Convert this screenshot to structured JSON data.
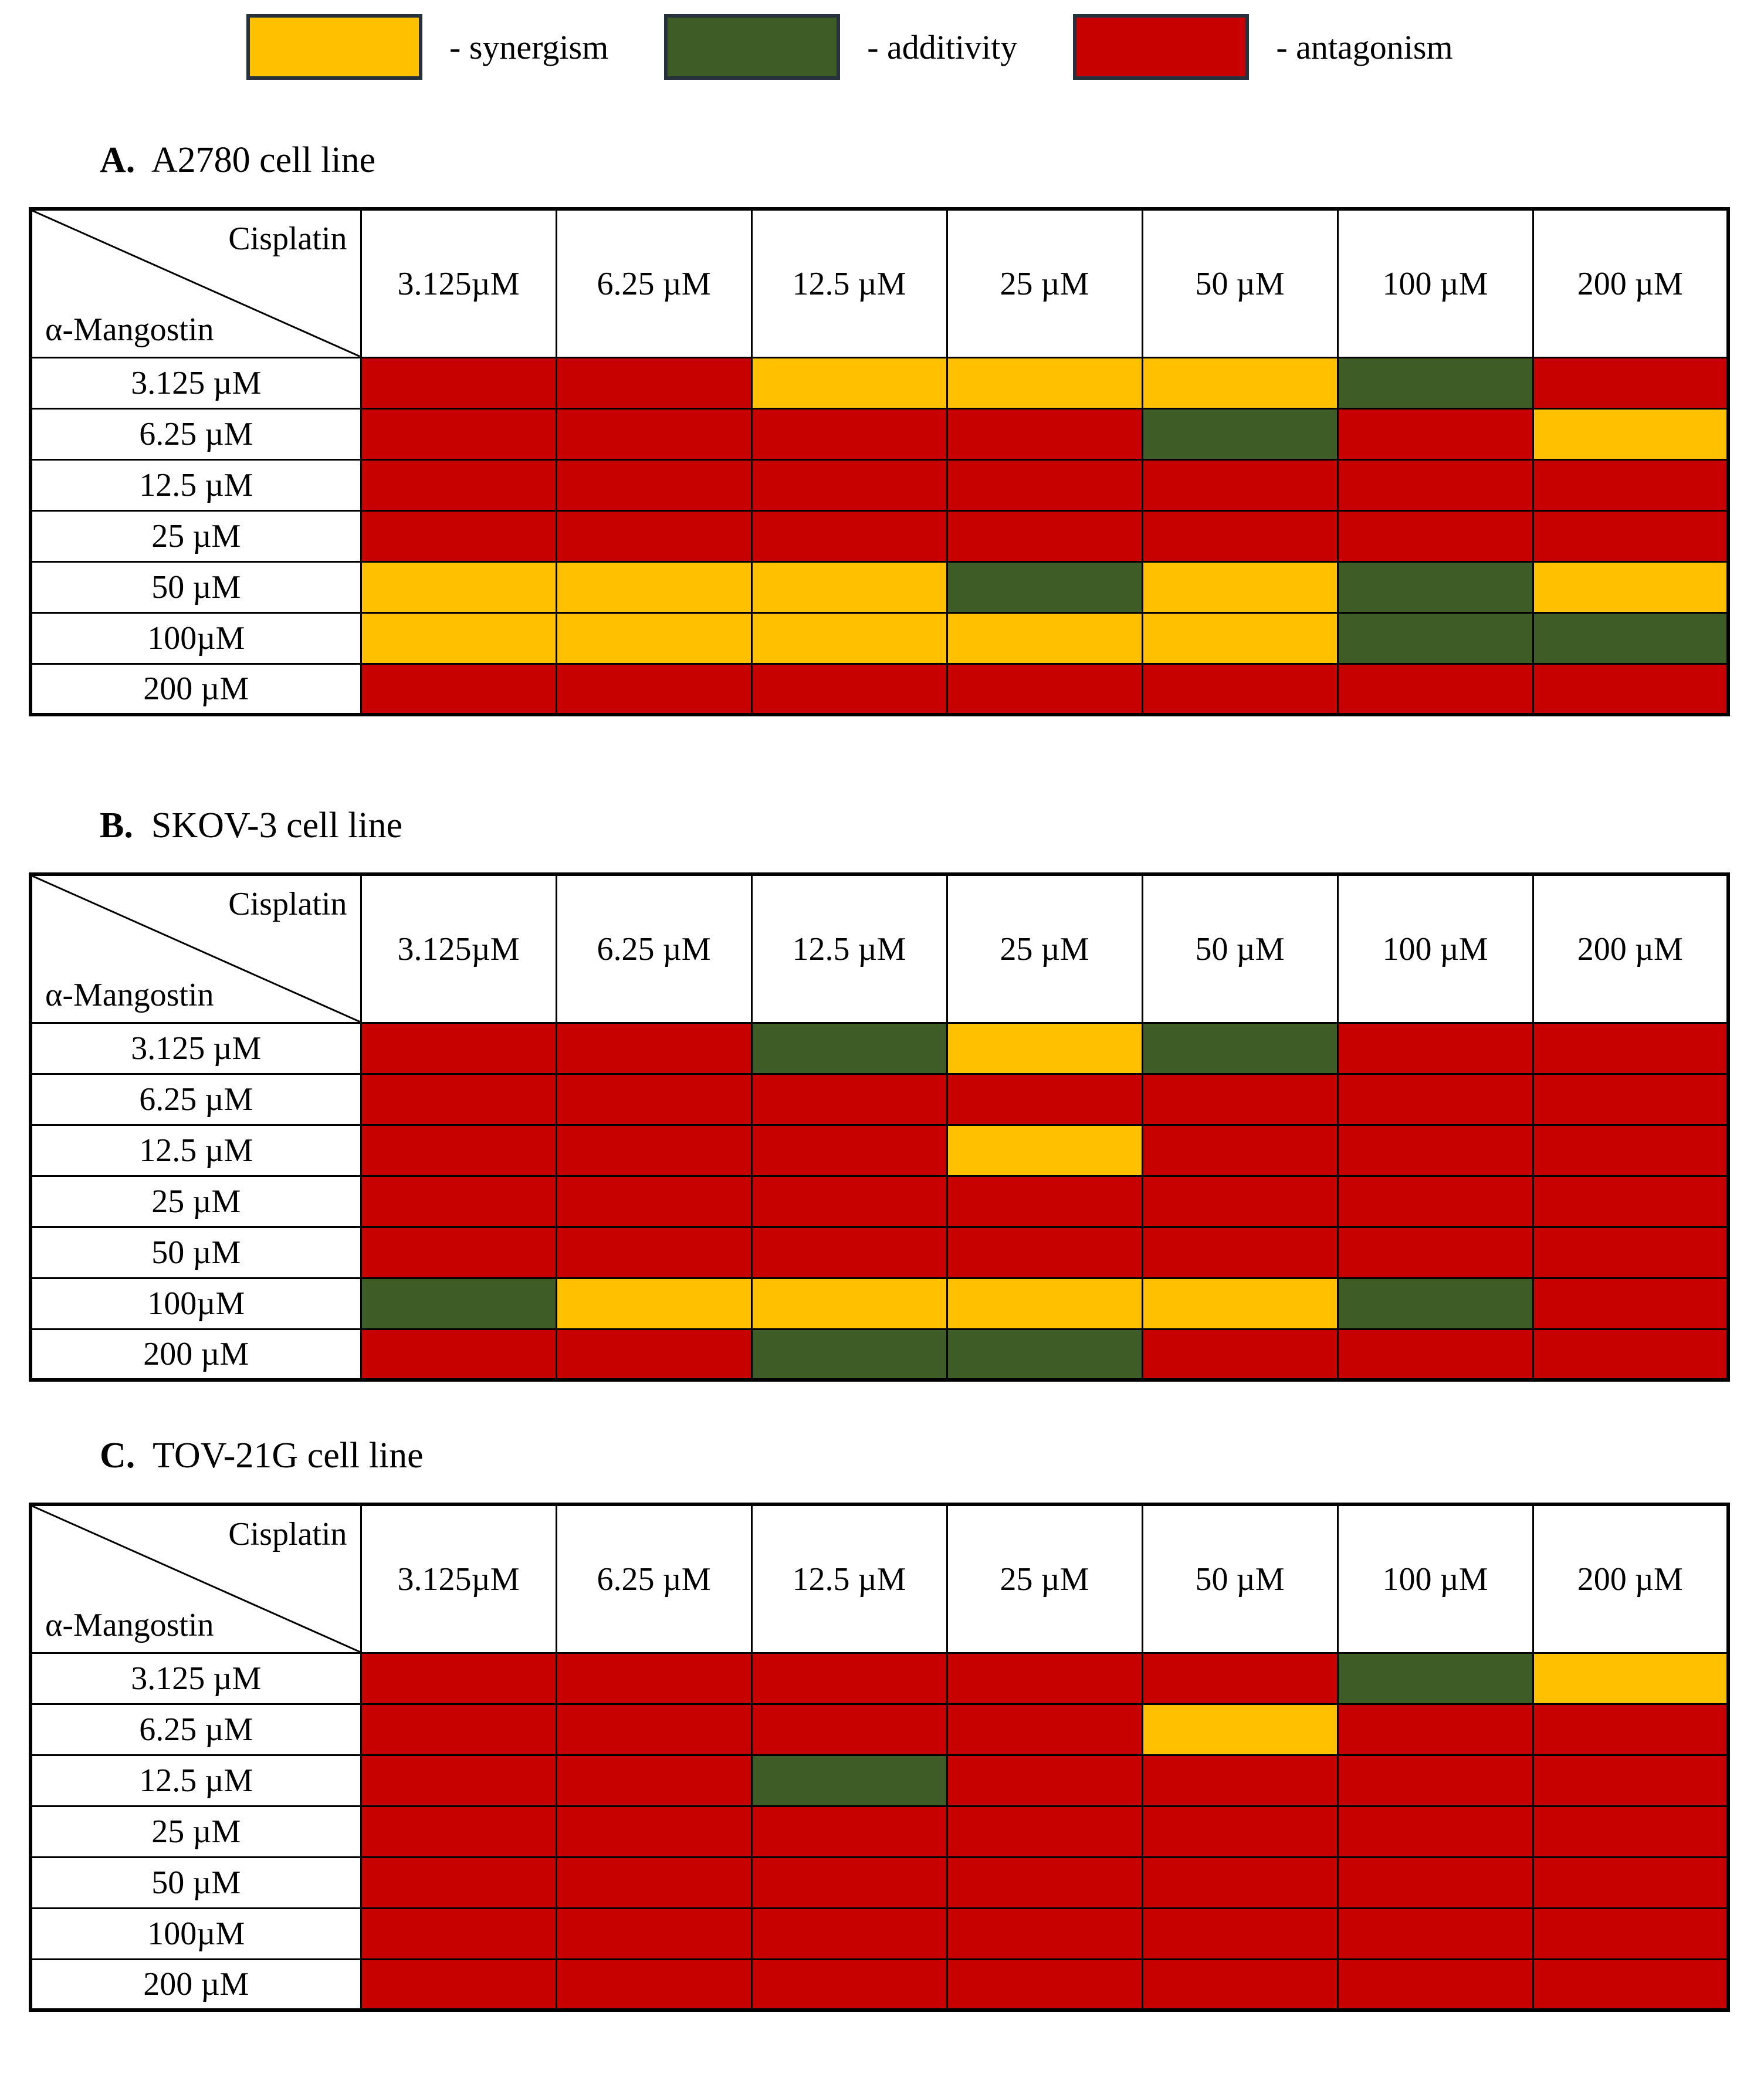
{
  "legend": {
    "items": [
      {
        "value": "synergism",
        "label": "- synergism",
        "color": "#FFC000"
      },
      {
        "value": "additivity",
        "label": "- additivity",
        "color": "#3E5D26"
      },
      {
        "value": "antagonism",
        "label": "- antagonism",
        "color": "#C70000"
      }
    ]
  },
  "axis": {
    "col_drug": "Cisplatin",
    "row_drug": "α-Mangostin",
    "col_labels": [
      "3.125µM",
      "6.25 µM",
      "12.5 µM",
      "25 µM",
      "50 µM",
      "100 µM",
      "200 µM"
    ],
    "row_labels": [
      "3.125 µM",
      "6.25 µM",
      "12.5 µM",
      "25 µM",
      "50 µM",
      "100µM",
      "200 µM"
    ]
  },
  "tables": [
    {
      "prefix": "A.",
      "title": "A2780 cell line",
      "grid": [
        [
          "antagonism",
          "antagonism",
          "synergism",
          "synergism",
          "synergism",
          "additivity",
          "antagonism"
        ],
        [
          "antagonism",
          "antagonism",
          "antagonism",
          "antagonism",
          "additivity",
          "antagonism",
          "synergism"
        ],
        [
          "antagonism",
          "antagonism",
          "antagonism",
          "antagonism",
          "antagonism",
          "antagonism",
          "antagonism"
        ],
        [
          "antagonism",
          "antagonism",
          "antagonism",
          "antagonism",
          "antagonism",
          "antagonism",
          "antagonism"
        ],
        [
          "synergism",
          "synergism",
          "synergism",
          "additivity",
          "synergism",
          "additivity",
          "synergism"
        ],
        [
          "synergism",
          "synergism",
          "synergism",
          "synergism",
          "synergism",
          "additivity",
          "additivity"
        ],
        [
          "antagonism",
          "antagonism",
          "antagonism",
          "antagonism",
          "antagonism",
          "antagonism",
          "antagonism"
        ]
      ]
    },
    {
      "prefix": "B.",
      "title": "SKOV-3 cell line",
      "grid": [
        [
          "antagonism",
          "antagonism",
          "additivity",
          "synergism",
          "additivity",
          "antagonism",
          "antagonism"
        ],
        [
          "antagonism",
          "antagonism",
          "antagonism",
          "antagonism",
          "antagonism",
          "antagonism",
          "antagonism"
        ],
        [
          "antagonism",
          "antagonism",
          "antagonism",
          "synergism",
          "antagonism",
          "antagonism",
          "antagonism"
        ],
        [
          "antagonism",
          "antagonism",
          "antagonism",
          "antagonism",
          "antagonism",
          "antagonism",
          "antagonism"
        ],
        [
          "antagonism",
          "antagonism",
          "antagonism",
          "antagonism",
          "antagonism",
          "antagonism",
          "antagonism"
        ],
        [
          "additivity",
          "synergism",
          "synergism",
          "synergism",
          "synergism",
          "additivity",
          "antagonism"
        ],
        [
          "antagonism",
          "antagonism",
          "additivity",
          "additivity",
          "antagonism",
          "antagonism",
          "antagonism"
        ]
      ]
    },
    {
      "prefix": "C.",
      "title": "TOV-21G cell line",
      "grid": [
        [
          "antagonism",
          "antagonism",
          "antagonism",
          "antagonism",
          "antagonism",
          "additivity",
          "synergism"
        ],
        [
          "antagonism",
          "antagonism",
          "antagonism",
          "antagonism",
          "synergism",
          "antagonism",
          "antagonism"
        ],
        [
          "antagonism",
          "antagonism",
          "additivity",
          "antagonism",
          "antagonism",
          "antagonism",
          "antagonism"
        ],
        [
          "antagonism",
          "antagonism",
          "antagonism",
          "antagonism",
          "antagonism",
          "antagonism",
          "antagonism"
        ],
        [
          "antagonism",
          "antagonism",
          "antagonism",
          "antagonism",
          "antagonism",
          "antagonism",
          "antagonism"
        ],
        [
          "antagonism",
          "antagonism",
          "antagonism",
          "antagonism",
          "antagonism",
          "antagonism",
          "antagonism"
        ],
        [
          "antagonism",
          "antagonism",
          "antagonism",
          "antagonism",
          "antagonism",
          "antagonism",
          "antagonism"
        ]
      ]
    }
  ],
  "chart_data": [
    {
      "type": "heatmap",
      "title": "A. A2780 cell line",
      "xlabel": "Cisplatin",
      "ylabel": "α-Mangostin",
      "x_categories": [
        "3.125µM",
        "6.25 µM",
        "12.5 µM",
        "25 µM",
        "50 µM",
        "100 µM",
        "200 µM"
      ],
      "y_categories": [
        "3.125 µM",
        "6.25 µM",
        "12.5 µM",
        "25 µM",
        "50 µM",
        "100µM",
        "200 µM"
      ],
      "legend": {
        "synergism": "#FFC000",
        "additivity": "#3E5D26",
        "antagonism": "#C70000"
      },
      "values": [
        [
          "antagonism",
          "antagonism",
          "synergism",
          "synergism",
          "synergism",
          "additivity",
          "antagonism"
        ],
        [
          "antagonism",
          "antagonism",
          "antagonism",
          "antagonism",
          "additivity",
          "antagonism",
          "synergism"
        ],
        [
          "antagonism",
          "antagonism",
          "antagonism",
          "antagonism",
          "antagonism",
          "antagonism",
          "antagonism"
        ],
        [
          "antagonism",
          "antagonism",
          "antagonism",
          "antagonism",
          "antagonism",
          "antagonism",
          "antagonism"
        ],
        [
          "synergism",
          "synergism",
          "synergism",
          "additivity",
          "synergism",
          "additivity",
          "synergism"
        ],
        [
          "synergism",
          "synergism",
          "synergism",
          "synergism",
          "synergism",
          "additivity",
          "additivity"
        ],
        [
          "antagonism",
          "antagonism",
          "antagonism",
          "antagonism",
          "antagonism",
          "antagonism",
          "antagonism"
        ]
      ]
    },
    {
      "type": "heatmap",
      "title": "B. SKOV-3 cell line",
      "xlabel": "Cisplatin",
      "ylabel": "α-Mangostin",
      "x_categories": [
        "3.125µM",
        "6.25 µM",
        "12.5 µM",
        "25 µM",
        "50 µM",
        "100 µM",
        "200 µM"
      ],
      "y_categories": [
        "3.125 µM",
        "6.25 µM",
        "12.5 µM",
        "25 µM",
        "50 µM",
        "100µM",
        "200 µM"
      ],
      "legend": {
        "synergism": "#FFC000",
        "additivity": "#3E5D26",
        "antagonism": "#C70000"
      },
      "values": [
        [
          "antagonism",
          "antagonism",
          "additivity",
          "synergism",
          "additivity",
          "antagonism",
          "antagonism"
        ],
        [
          "antagonism",
          "antagonism",
          "antagonism",
          "antagonism",
          "antagonism",
          "antagonism",
          "antagonism"
        ],
        [
          "antagonism",
          "antagonism",
          "antagonism",
          "synergism",
          "antagonism",
          "antagonism",
          "antagonism"
        ],
        [
          "antagonism",
          "antagonism",
          "antagonism",
          "antagonism",
          "antagonism",
          "antagonism",
          "antagonism"
        ],
        [
          "antagonism",
          "antagonism",
          "antagonism",
          "antagonism",
          "antagonism",
          "antagonism",
          "antagonism"
        ],
        [
          "additivity",
          "synergism",
          "synergism",
          "synergism",
          "synergism",
          "additivity",
          "antagonism"
        ],
        [
          "antagonism",
          "antagonism",
          "additivity",
          "additivity",
          "antagonism",
          "antagonism",
          "antagonism"
        ]
      ]
    },
    {
      "type": "heatmap",
      "title": "C. TOV-21G cell line",
      "xlabel": "Cisplatin",
      "ylabel": "α-Mangostin",
      "x_categories": [
        "3.125µM",
        "6.25 µM",
        "12.5 µM",
        "25 µM",
        "50 µM",
        "100 µM",
        "200 µM"
      ],
      "y_categories": [
        "3.125 µM",
        "6.25 µM",
        "12.5 µM",
        "25 µM",
        "50 µM",
        "100µM",
        "200 µM"
      ],
      "legend": {
        "synergism": "#FFC000",
        "additivity": "#3E5D26",
        "antagonism": "#C70000"
      },
      "values": [
        [
          "antagonism",
          "antagonism",
          "antagonism",
          "antagonism",
          "antagonism",
          "additivity",
          "synergism"
        ],
        [
          "antagonism",
          "antagonism",
          "antagonism",
          "antagonism",
          "synergism",
          "antagonism",
          "antagonism"
        ],
        [
          "antagonism",
          "antagonism",
          "additivity",
          "antagonism",
          "antagonism",
          "antagonism",
          "antagonism"
        ],
        [
          "antagonism",
          "antagonism",
          "antagonism",
          "antagonism",
          "antagonism",
          "antagonism",
          "antagonism"
        ],
        [
          "antagonism",
          "antagonism",
          "antagonism",
          "antagonism",
          "antagonism",
          "antagonism",
          "antagonism"
        ],
        [
          "antagonism",
          "antagonism",
          "antagonism",
          "antagonism",
          "antagonism",
          "antagonism",
          "antagonism"
        ],
        [
          "antagonism",
          "antagonism",
          "antagonism",
          "antagonism",
          "antagonism",
          "antagonism",
          "antagonism"
        ]
      ]
    }
  ]
}
